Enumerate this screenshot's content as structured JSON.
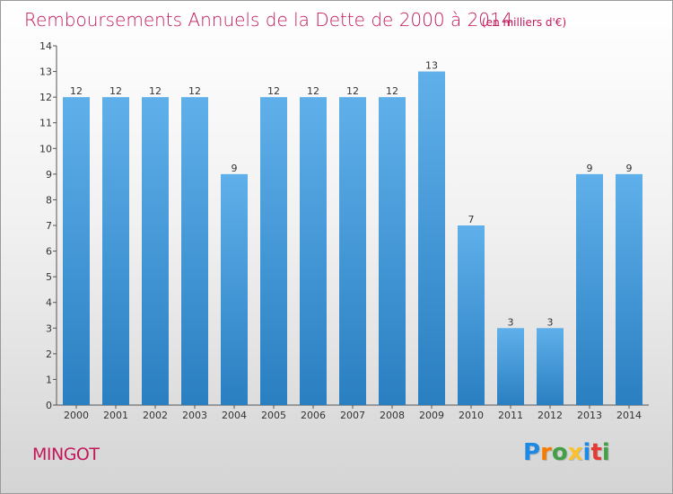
{
  "chart_data": {
    "type": "bar",
    "title": "Remboursements Annuels de la Dette de 2000 à 2014",
    "unit_note": "(en milliers d'€)",
    "categories": [
      "2000",
      "2001",
      "2002",
      "2003",
      "2004",
      "2005",
      "2006",
      "2007",
      "2008",
      "2009",
      "2010",
      "2011",
      "2012",
      "2013",
      "2014"
    ],
    "values": [
      12,
      12,
      12,
      12,
      9,
      12,
      12,
      12,
      12,
      13,
      7,
      3,
      3,
      9,
      9
    ],
    "ylim": [
      0,
      14
    ],
    "yticks": [
      0,
      1,
      2,
      3,
      4,
      5,
      6,
      7,
      8,
      9,
      10,
      11,
      12,
      13,
      14
    ],
    "grid": false,
    "bar_color_top": "#5fb0ea",
    "bar_color_bottom": "#2a7fc1",
    "title_color": "#c2185b"
  },
  "footer": {
    "commune": "MINGOT",
    "logo_letters": [
      {
        "ch": "P",
        "color": "#1e88e5"
      },
      {
        "ch": "r",
        "color": "#f57c00"
      },
      {
        "ch": "o",
        "color": "#43a047"
      },
      {
        "ch": "x",
        "color": "#fbc02d"
      },
      {
        "ch": "i",
        "color": "#1e88e5"
      },
      {
        "ch": "t",
        "color": "#e53935"
      },
      {
        "ch": "i",
        "color": "#43a047"
      }
    ]
  }
}
